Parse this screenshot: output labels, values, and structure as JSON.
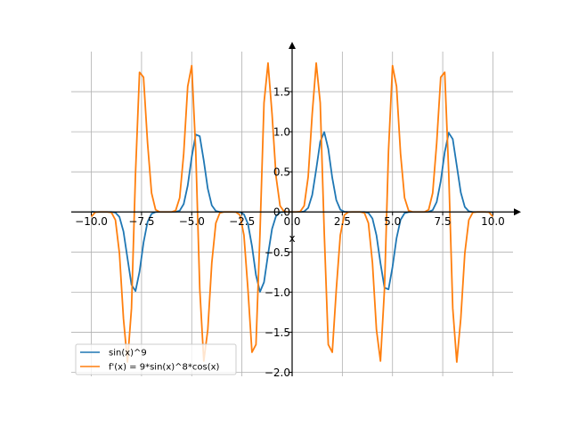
{
  "chart_data": {
    "type": "line",
    "title": "",
    "xlabel": "x",
    "ylabel": "",
    "xlim": [
      -11.0,
      11.0
    ],
    "ylim": [
      -2.05,
      2.0
    ],
    "grid": true,
    "legend_position": "lower-left",
    "x_ticks": [
      -10.0,
      -7.5,
      -5.0,
      -2.5,
      0.0,
      2.5,
      5.0,
      7.5,
      10.0
    ],
    "x_tick_labels": [
      "−10.0",
      "−7.5",
      "−5.0",
      "−2.5",
      "0.0",
      "2.5",
      "5.0",
      "7.5",
      "10.0"
    ],
    "y_ticks": [
      -2.0,
      -1.5,
      -1.0,
      -0.5,
      0.0,
      0.5,
      1.0,
      1.5
    ],
    "y_tick_labels": [
      "−2.0",
      "−1.5",
      "−1.0",
      "−0.5",
      "0.0",
      "0.5",
      "1.0",
      "1.5"
    ],
    "x_range": [
      -10.0,
      10.0
    ],
    "num_samples": 101,
    "series": [
      {
        "name": "sin(x)^9",
        "color": "#1f77b4",
        "expression": "sin(x)^9"
      },
      {
        "name": "f'(x) = 9*sin(x)^8*cos(x)",
        "color": "#ff7f0e",
        "expression": "9*sin(x)^8*cos(x)"
      }
    ]
  }
}
